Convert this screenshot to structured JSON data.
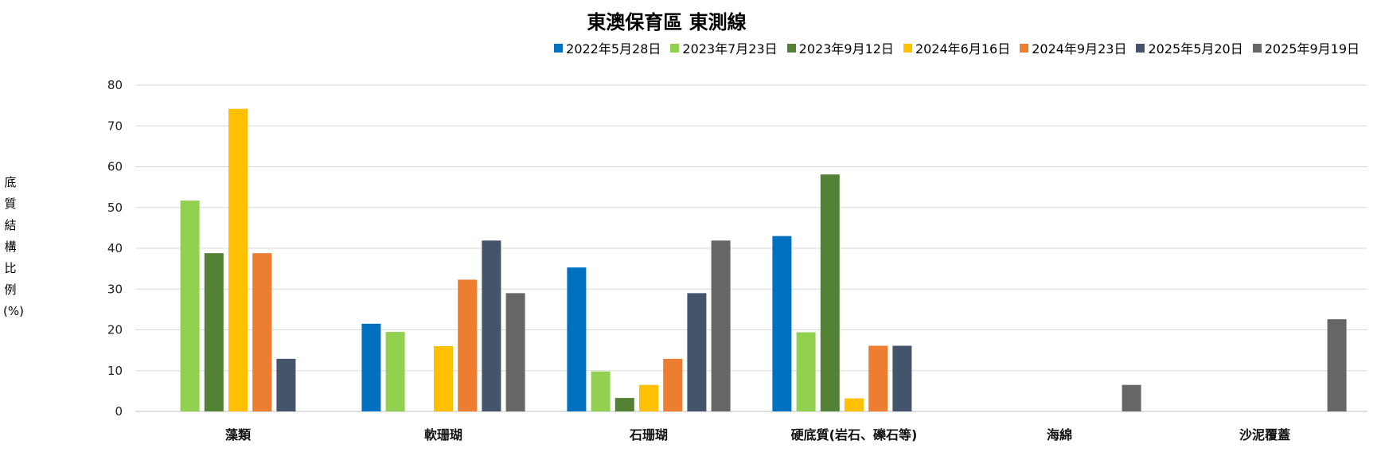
{
  "chart_data": {
    "type": "bar",
    "title": "東澳保育區 東測線",
    "xlabel": "",
    "ylabel": "底質結構比例(%)",
    "ylim": [
      0,
      80
    ],
    "yticks": [
      0,
      10,
      20,
      30,
      40,
      50,
      60,
      70,
      80
    ],
    "grid": true,
    "legend_position": "top-right",
    "categories": [
      "藻類",
      "軟珊瑚",
      "石珊瑚",
      "硬底質(岩石、礫石等)",
      "海綿",
      "沙泥覆蓋"
    ],
    "series": [
      {
        "name": "2022年5月28日",
        "color": "#0070C0",
        "values": [
          null,
          21.5,
          35.3,
          43,
          null,
          null
        ]
      },
      {
        "name": "2023年7月23日",
        "color": "#92D050",
        "values": [
          51.7,
          19.5,
          9.8,
          19.4,
          null,
          null
        ]
      },
      {
        "name": "2023年9月12日",
        "color": "#548235",
        "values": [
          38.8,
          null,
          3.3,
          58.1,
          null,
          null
        ]
      },
      {
        "name": "2024年6月16日",
        "color": "#FFC000",
        "values": [
          74.2,
          16,
          6.5,
          3.2,
          null,
          null
        ]
      },
      {
        "name": "2024年9月23日",
        "color": "#ED7D31",
        "values": [
          38.8,
          32.3,
          12.9,
          16.1,
          null,
          null
        ]
      },
      {
        "name": "2025年5月20日",
        "color": "#44546A",
        "values": [
          12.9,
          41.9,
          29,
          16.1,
          null,
          null
        ]
      },
      {
        "name": "2025年9月19日",
        "color": "#666666",
        "values": [
          null,
          29,
          41.9,
          null,
          6.5,
          22.6
        ]
      }
    ]
  }
}
